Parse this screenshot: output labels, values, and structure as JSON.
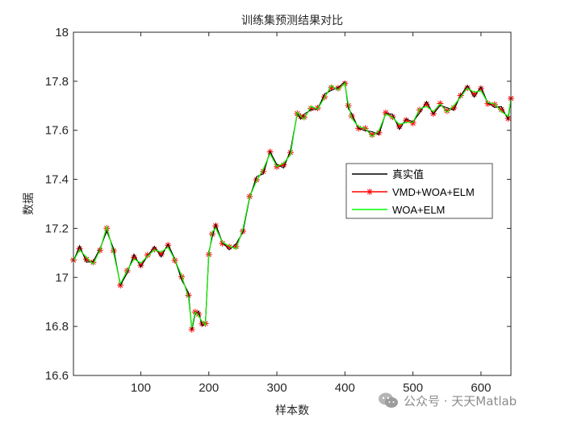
{
  "chart_data": {
    "type": "line",
    "title": "训练集预测结果对比",
    "xlabel": "样本数",
    "ylabel": "数据",
    "xlim": [
      1,
      644
    ],
    "ylim": [
      16.6,
      18.0
    ],
    "xticks": [
      100,
      200,
      300,
      400,
      500,
      600
    ],
    "yticks": [
      16.6,
      16.8,
      17.0,
      17.2,
      17.4,
      17.6,
      17.8,
      18.0
    ],
    "xtick_labels": [
      "100",
      "200",
      "300",
      "400",
      "500",
      "600"
    ],
    "ytick_labels": [
      "16.6",
      "16.8",
      "17",
      "17.2",
      "17.4",
      "17.6",
      "17.8",
      "18"
    ],
    "grid": false,
    "legend_position": "right-middle",
    "series": [
      {
        "name": "真实值",
        "color": "#000000",
        "marker": "none"
      },
      {
        "name": "VMD+WOA+ELM",
        "color": "#ff0000",
        "marker": "asterisk"
      },
      {
        "name": "WOA+ELM",
        "color": "#00ff00",
        "marker": "none"
      }
    ],
    "x": [
      1,
      10,
      20,
      30,
      40,
      50,
      60,
      70,
      80,
      90,
      100,
      110,
      120,
      130,
      140,
      150,
      160,
      170,
      175,
      180,
      185,
      190,
      195,
      200,
      205,
      210,
      220,
      230,
      240,
      250,
      260,
      270,
      280,
      290,
      300,
      310,
      320,
      330,
      335,
      340,
      350,
      360,
      370,
      380,
      390,
      400,
      405,
      410,
      420,
      430,
      440,
      450,
      460,
      470,
      480,
      490,
      500,
      510,
      520,
      530,
      540,
      550,
      560,
      570,
      580,
      590,
      600,
      610,
      620,
      630,
      640,
      644
    ],
    "y": [
      17.06,
      17.12,
      17.08,
      17.05,
      17.12,
      17.2,
      17.1,
      16.98,
      17.02,
      17.08,
      17.06,
      17.08,
      17.12,
      17.1,
      17.12,
      17.08,
      17.0,
      16.92,
      16.8,
      16.85,
      16.85,
      16.82,
      16.8,
      17.1,
      17.18,
      17.2,
      17.15,
      17.12,
      17.12,
      17.2,
      17.32,
      17.4,
      17.44,
      17.5,
      17.46,
      17.46,
      17.5,
      17.68,
      17.65,
      17.65,
      17.7,
      17.68,
      17.74,
      17.78,
      17.76,
      17.8,
      17.7,
      17.65,
      17.62,
      17.6,
      17.58,
      17.6,
      17.66,
      17.66,
      17.62,
      17.63,
      17.64,
      17.68,
      17.7,
      17.68,
      17.7,
      17.68,
      17.7,
      17.73,
      17.78,
      17.75,
      17.76,
      17.72,
      17.7,
      17.68,
      17.66,
      17.72
    ]
  },
  "watermark": {
    "text": "公众号 · 天天Matlab"
  }
}
